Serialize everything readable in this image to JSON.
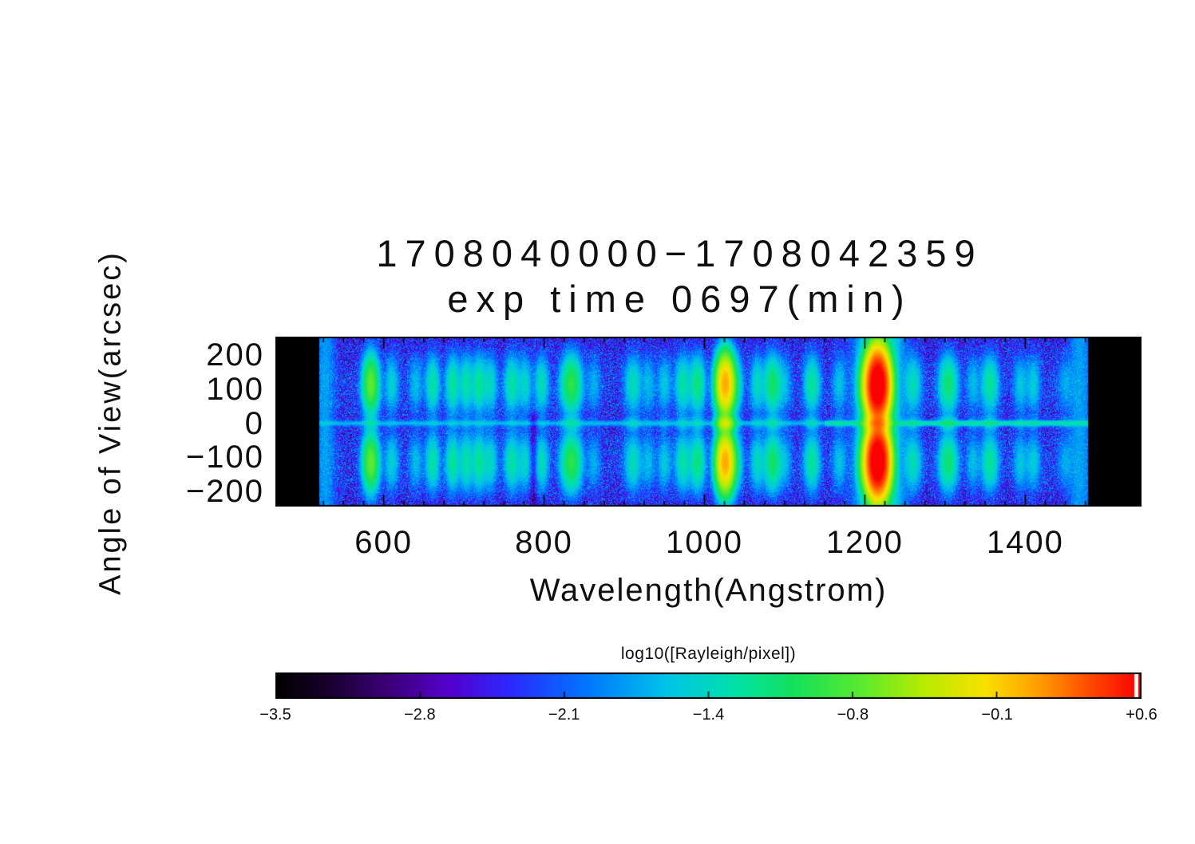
{
  "chart_data": {
    "type": "heatmap",
    "title": "1708040000−1708042359",
    "subtitle": "exp time 0697(min)",
    "x_axis": {
      "label": "Wavelength(Angstrom)",
      "ticks": [
        {
          "value": 600,
          "label": "600"
        },
        {
          "value": 800,
          "label": "800"
        },
        {
          "value": 1000,
          "label": "1000"
        },
        {
          "value": 1200,
          "label": "1200"
        },
        {
          "value": 1400,
          "label": "1400"
        }
      ],
      "minor_step": 25
    },
    "y_axis": {
      "label": "Angle of View(arcsec)",
      "ticks": [
        {
          "value": 200,
          "label": "200"
        },
        {
          "value": 100,
          "label": "100"
        },
        {
          "value": 0,
          "label": "0"
        },
        {
          "value": -100,
          "label": "−100"
        },
        {
          "value": -200,
          "label": "−200"
        }
      ],
      "minor_step": 20
    },
    "x_range": [
      465,
      1545
    ],
    "y_range": [
      -245,
      255
    ],
    "data_x_extent": [
      520,
      1478
    ],
    "colorbar": {
      "label": "log10([Rayleigh/pixel])",
      "ticks": [
        "−3.5",
        "−2.8",
        "−2.1",
        "−1.4",
        "−0.8",
        "−0.1",
        "+0.6"
      ],
      "range": [
        -3.5,
        0.6
      ]
    },
    "colormap_stops": [
      [
        0.0,
        "#000000"
      ],
      [
        0.06,
        "#19002d"
      ],
      [
        0.13,
        "#3c0078"
      ],
      [
        0.2,
        "#5500cd"
      ],
      [
        0.27,
        "#2d28ff"
      ],
      [
        0.36,
        "#0078ff"
      ],
      [
        0.45,
        "#00c3eb"
      ],
      [
        0.53,
        "#00e1aa"
      ],
      [
        0.6,
        "#14e15a"
      ],
      [
        0.68,
        "#5feb2d"
      ],
      [
        0.75,
        "#b9eb00"
      ],
      [
        0.82,
        "#fae100"
      ],
      [
        0.88,
        "#ffa000"
      ],
      [
        0.94,
        "#ff4b00"
      ],
      [
        1.0,
        "#fa0000"
      ]
    ],
    "background": {
      "base": -2.5,
      "noise_sigma": 0.33,
      "limb_band_amp": 0.18,
      "limb_band_center": 105,
      "limb_band_sigma": 75
    },
    "blob_profile": {
      "centers": 115,
      "sigma": 45,
      "center_sigma": 13,
      "center_frac_default": 0.18
    },
    "center_streak": {
      "sigma": 4.5,
      "amp": -1.85,
      "amp_fuv": -1.55,
      "fuv_from": 1150
    },
    "artifact": {
      "wl": 787,
      "sigma": 3.5,
      "depth": 0.62,
      "below_arcsec": 30
    },
    "emission_lines": [
      {
        "wl": 584,
        "amp": -0.72,
        "sw": 5.5,
        "c0": 0.1
      },
      {
        "wl": 610,
        "amp": -1.6,
        "sw": 5,
        "c0": 0.15
      },
      {
        "wl": 640,
        "amp": -1.8,
        "sw": 5,
        "c0": 0.15
      },
      {
        "wl": 661,
        "amp": -1.35,
        "sw": 5,
        "c0": 0.15
      },
      {
        "wl": 686,
        "amp": -1.3,
        "sw": 5,
        "c0": 0.15
      },
      {
        "wl": 703,
        "amp": -1.35,
        "sw": 5,
        "c0": 0.15
      },
      {
        "wl": 719,
        "amp": -1.28,
        "sw": 5,
        "c0": 0.15
      },
      {
        "wl": 733,
        "amp": -1.5,
        "sw": 5,
        "c0": 0.15
      },
      {
        "wl": 760,
        "amp": -1.35,
        "sw": 5.5,
        "c0": 0.15
      },
      {
        "wl": 776,
        "amp": -1.55,
        "sw": 5,
        "c0": 0.15
      },
      {
        "wl": 797,
        "amp": -1.45,
        "sw": 5,
        "c0": 0.15
      },
      {
        "wl": 834,
        "amp": -0.95,
        "sw": 7,
        "c0": 0.25
      },
      {
        "wl": 862,
        "amp": -1.9,
        "sw": 5,
        "c0": 0.2
      },
      {
        "wl": 911,
        "amp": -1.45,
        "sw": 6,
        "c0": 0.5
      },
      {
        "wl": 930,
        "amp": -1.8,
        "sw": 5,
        "c0": 0.3
      },
      {
        "wl": 950,
        "amp": -1.7,
        "sw": 5,
        "c0": 0.4
      },
      {
        "wl": 973,
        "amp": -1.35,
        "sw": 5.5,
        "c0": 0.35
      },
      {
        "wl": 991,
        "amp": -1.2,
        "sw": 5.5,
        "c0": 0.3
      },
      {
        "wl": 1026,
        "amp": 0.08,
        "sw": 6,
        "c0": 0.35
      },
      {
        "wl": 1040,
        "amp": -1.55,
        "sw": 5,
        "c0": 0.3
      },
      {
        "wl": 1066,
        "amp": -1.5,
        "sw": 5,
        "c0": 0.4
      },
      {
        "wl": 1085,
        "amp": -1.1,
        "sw": 6,
        "c0": 0.35
      },
      {
        "wl": 1100,
        "amp": -1.8,
        "sw": 5,
        "c0": 0.3
      },
      {
        "wl": 1134,
        "amp": -1.3,
        "sw": 5.5,
        "c0": 0.4
      },
      {
        "wl": 1168,
        "amp": -1.75,
        "sw": 5,
        "c0": 0.5
      },
      {
        "wl": 1200,
        "amp": -1.15,
        "sw": 6,
        "c0": 0.4
      },
      {
        "wl": 1216,
        "amp": 0.82,
        "sw": 7.5,
        "c0": 0.12,
        "bc": 112,
        "bs": 52
      },
      {
        "wl": 1260,
        "amp": -1.45,
        "sw": 6,
        "c0": 0.45
      },
      {
        "wl": 1304,
        "amp": -1.15,
        "sw": 6.5,
        "c0": 0.5
      },
      {
        "wl": 1335,
        "amp": -1.8,
        "sw": 5,
        "c0": 0.5
      },
      {
        "wl": 1356,
        "amp": -1.3,
        "sw": 6,
        "c0": 0.45
      },
      {
        "wl": 1394,
        "amp": -1.7,
        "sw": 5,
        "c0": 0.4
      },
      {
        "wl": 1410,
        "amp": -1.65,
        "sw": 5,
        "c0": 0.4
      },
      {
        "wl": 1450,
        "amp": -1.95,
        "sw": 6,
        "c0": 0.4
      }
    ],
    "columns": [
      {
        "wl": 527,
        "amp": -2.0,
        "sw": 7
      },
      {
        "wl": 1216,
        "amp": -1.55,
        "sw": 16
      },
      {
        "wl": 1237,
        "amp": -2.05,
        "sw": 8
      },
      {
        "wl": 1468,
        "amp": -2.0,
        "sw": 8
      }
    ]
  }
}
